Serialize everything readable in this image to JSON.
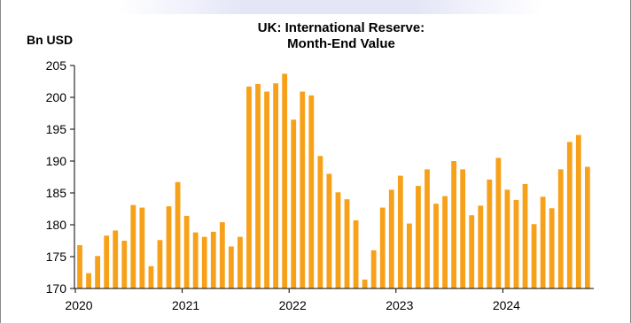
{
  "chart_data": {
    "type": "bar",
    "title_lines": [
      "UK: International Reserve:",
      "Month-End Value"
    ],
    "ylabel": "Bn USD",
    "xlabel": "",
    "ylim": [
      170,
      205
    ],
    "yticks": [
      170,
      175,
      180,
      185,
      190,
      195,
      200,
      205
    ],
    "x_tick_labels": [
      "2020",
      "2021",
      "2022",
      "2023",
      "2024"
    ],
    "bar_color": "#f7a11a",
    "grid": false,
    "legend": "none",
    "series": [
      {
        "start": "2020-01",
        "frequency": "monthly",
        "values": [
          176.8,
          172.4,
          175.1,
          178.3,
          179.1,
          177.5,
          183.1,
          182.7,
          173.5,
          177.6,
          182.9,
          186.7,
          181.4,
          178.8,
          178.1,
          178.9,
          180.4,
          176.6,
          178.1,
          201.7,
          202.1,
          200.9,
          202.2,
          203.7,
          196.5,
          200.9,
          200.3,
          190.8,
          188.0,
          185.1,
          184.0,
          180.7,
          171.4,
          176.0,
          182.7,
          185.5,
          187.7,
          180.2,
          186.1,
          188.7,
          183.3,
          184.5,
          190.0,
          188.7,
          181.5,
          183.0,
          187.1,
          190.5,
          185.5,
          183.9,
          186.4,
          180.1,
          184.4,
          182.6,
          188.7,
          193.0,
          194.1,
          189.1
        ]
      }
    ]
  }
}
